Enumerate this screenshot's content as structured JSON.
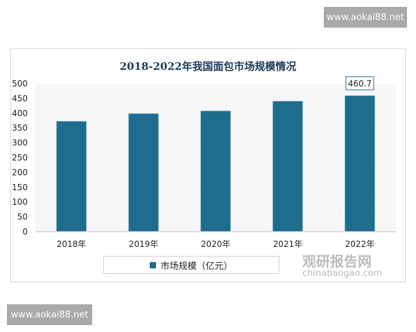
{
  "watermark": "www.aokai88.net",
  "logo": {
    "name": "观研报告网",
    "url": "chinabaogao.com"
  },
  "chart_data": {
    "type": "bar",
    "title": "2018-2022年我国面包市场规模情况",
    "categories": [
      "2018年",
      "2019年",
      "2020年",
      "2021年",
      "2022年"
    ],
    "series": [
      {
        "name": "市场规模（亿元）",
        "values": [
          374,
          400,
          409,
          442,
          460.7
        ],
        "color": "#1e6d8e"
      }
    ],
    "data_labels": [
      null,
      null,
      null,
      null,
      "460.7"
    ],
    "yticks": [
      0,
      50,
      100,
      150,
      200,
      250,
      300,
      350,
      400,
      450,
      500
    ],
    "ylim": [
      0,
      500
    ],
    "legend": "bottom",
    "background": "hatched"
  }
}
